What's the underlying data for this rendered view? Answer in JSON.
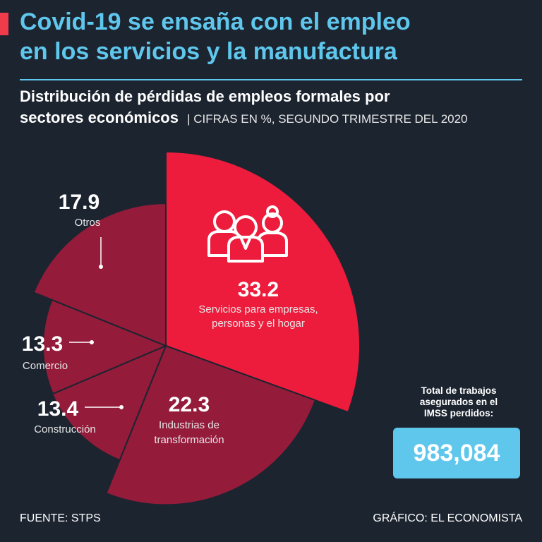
{
  "header": {
    "title_line1": "Covid-19 se ensaña con el empleo",
    "title_line2": "en los servicios y la manufactura",
    "subtitle_line1": "Distribución de pérdidas de empleos formales por",
    "subtitle_line2": "sectores económicos",
    "subtitle_note": "| CIFRAS EN %, SEGUNDO TRIMESTRE DEL 2020"
  },
  "chart_data": {
    "type": "pie",
    "variant": "rose",
    "unit": "%",
    "categories": [
      "Servicios para empresas, personas y el hogar",
      "Industrias de transformación",
      "Construcción",
      "Comercio",
      "Otros"
    ],
    "values": [
      33.2,
      22.3,
      13.4,
      13.3,
      17.9
    ],
    "labels": [
      {
        "value": "33.2",
        "name_line1": "Servicios para empresas,",
        "name_line2": "personas y el hogar"
      },
      {
        "value": "22.3",
        "name_line1": "Industrias de",
        "name_line2": "transformación"
      },
      {
        "value": "13.4",
        "name_line1": "Construcción",
        "name_line2": ""
      },
      {
        "value": "13.3",
        "name_line1": "Comercio",
        "name_line2": ""
      },
      {
        "value": "17.9",
        "name_line1": "Otros",
        "name_line2": ""
      }
    ],
    "colors": {
      "highlight": "#ee1c3c",
      "secondary": "#951b3a",
      "background": "#1c2430"
    },
    "icon": "people-icon"
  },
  "total": {
    "caption_line1": "Total de trabajos",
    "caption_line2": "asegurados en el",
    "caption_line3": "IMSS perdidos:",
    "value": "983,084"
  },
  "footer": {
    "source": "FUENTE: STPS",
    "credit": "GRÁFICO: EL ECONOMISTA"
  }
}
